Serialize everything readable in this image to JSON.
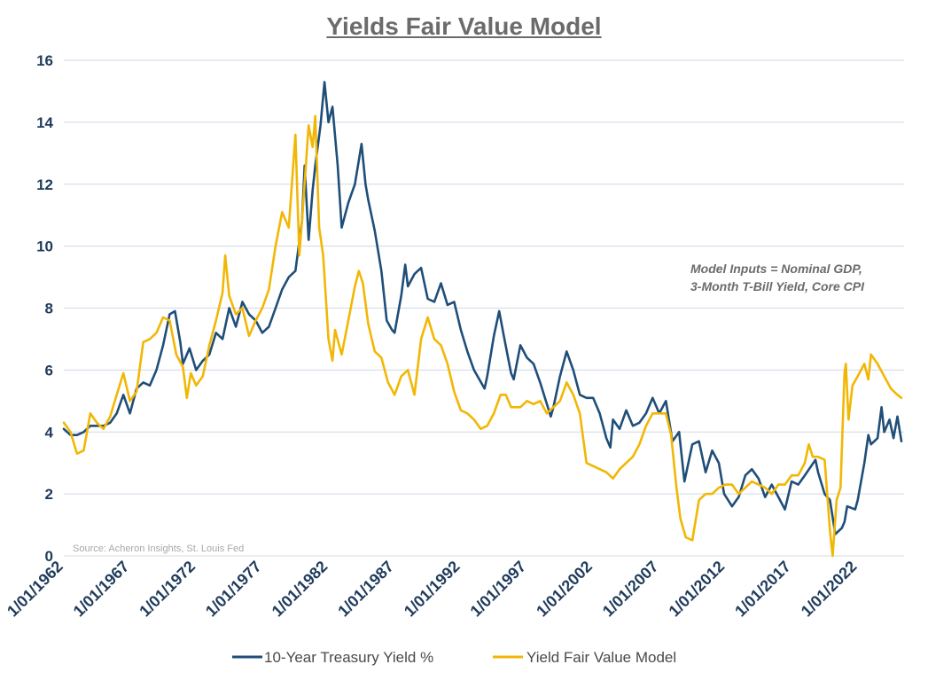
{
  "chart_data": {
    "type": "line",
    "title": "Yields Fair Value Model",
    "annotation_lines": [
      "Model Inputs = Nominal GDP,",
      "3-Month T-Bill Yield, Core CPI"
    ],
    "source": "Source: Acheron Insights, St. Louis Fed",
    "ylim": [
      0,
      16
    ],
    "yticks": [
      0,
      2,
      4,
      6,
      8,
      10,
      12,
      14,
      16
    ],
    "xlim": [
      1962,
      2025.5
    ],
    "xticks": [
      {
        "year": 1962,
        "label": "1/01/1962"
      },
      {
        "year": 1967,
        "label": "1/01/1967"
      },
      {
        "year": 1972,
        "label": "1/01/1972"
      },
      {
        "year": 1977,
        "label": "1/01/1977"
      },
      {
        "year": 1982,
        "label": "1/01/1982"
      },
      {
        "year": 1987,
        "label": "1/01/1987"
      },
      {
        "year": 1992,
        "label": "1/01/1992"
      },
      {
        "year": 1997,
        "label": "1/01/1997"
      },
      {
        "year": 2002,
        "label": "1/01/2002"
      },
      {
        "year": 2007,
        "label": "1/01/2007"
      },
      {
        "year": 2012,
        "label": "1/01/2012"
      },
      {
        "year": 2017,
        "label": "1/01/2017"
      },
      {
        "year": 2022,
        "label": "1/01/2022"
      }
    ],
    "grid": true,
    "legend_position": "bottom",
    "series": [
      {
        "name": "10-Year Treasury Yield %",
        "color": "#1f4e79",
        "points": [
          [
            1962.0,
            4.1
          ],
          [
            1962.5,
            3.9
          ],
          [
            1963.0,
            3.9
          ],
          [
            1963.5,
            4.0
          ],
          [
            1964.0,
            4.2
          ],
          [
            1964.5,
            4.2
          ],
          [
            1965.0,
            4.2
          ],
          [
            1965.5,
            4.3
          ],
          [
            1966.0,
            4.6
          ],
          [
            1966.5,
            5.2
          ],
          [
            1967.0,
            4.6
          ],
          [
            1967.5,
            5.4
          ],
          [
            1968.0,
            5.6
          ],
          [
            1968.5,
            5.5
          ],
          [
            1969.0,
            6.0
          ],
          [
            1969.5,
            6.8
          ],
          [
            1970.0,
            7.8
          ],
          [
            1970.4,
            7.9
          ],
          [
            1970.8,
            6.9
          ],
          [
            1971.0,
            6.2
          ],
          [
            1971.5,
            6.7
          ],
          [
            1972.0,
            6.0
          ],
          [
            1972.5,
            6.3
          ],
          [
            1973.0,
            6.5
          ],
          [
            1973.5,
            7.2
          ],
          [
            1974.0,
            7.0
          ],
          [
            1974.5,
            8.0
          ],
          [
            1975.0,
            7.4
          ],
          [
            1975.5,
            8.2
          ],
          [
            1976.0,
            7.8
          ],
          [
            1976.5,
            7.6
          ],
          [
            1977.0,
            7.2
          ],
          [
            1977.5,
            7.4
          ],
          [
            1978.0,
            8.0
          ],
          [
            1978.5,
            8.6
          ],
          [
            1979.0,
            9.0
          ],
          [
            1979.5,
            9.2
          ],
          [
            1980.0,
            10.8
          ],
          [
            1980.2,
            12.6
          ],
          [
            1980.5,
            10.2
          ],
          [
            1980.8,
            11.8
          ],
          [
            1981.0,
            12.6
          ],
          [
            1981.4,
            13.9
          ],
          [
            1981.7,
            15.3
          ],
          [
            1982.0,
            14.0
          ],
          [
            1982.3,
            14.5
          ],
          [
            1982.7,
            12.6
          ],
          [
            1983.0,
            10.6
          ],
          [
            1983.5,
            11.4
          ],
          [
            1984.0,
            12.0
          ],
          [
            1984.5,
            13.3
          ],
          [
            1984.8,
            12.0
          ],
          [
            1985.0,
            11.5
          ],
          [
            1985.5,
            10.5
          ],
          [
            1986.0,
            9.2
          ],
          [
            1986.4,
            7.6
          ],
          [
            1986.8,
            7.3
          ],
          [
            1987.0,
            7.2
          ],
          [
            1987.5,
            8.4
          ],
          [
            1987.8,
            9.4
          ],
          [
            1988.0,
            8.7
          ],
          [
            1988.5,
            9.1
          ],
          [
            1989.0,
            9.3
          ],
          [
            1989.5,
            8.3
          ],
          [
            1990.0,
            8.2
          ],
          [
            1990.5,
            8.8
          ],
          [
            1991.0,
            8.1
          ],
          [
            1991.5,
            8.2
          ],
          [
            1992.0,
            7.3
          ],
          [
            1992.5,
            6.6
          ],
          [
            1993.0,
            6.0
          ],
          [
            1993.8,
            5.4
          ],
          [
            1994.0,
            5.8
          ],
          [
            1994.5,
            7.1
          ],
          [
            1994.9,
            7.9
          ],
          [
            1995.3,
            7.0
          ],
          [
            1995.8,
            5.9
          ],
          [
            1996.0,
            5.7
          ],
          [
            1996.5,
            6.8
          ],
          [
            1997.0,
            6.4
          ],
          [
            1997.5,
            6.2
          ],
          [
            1998.0,
            5.6
          ],
          [
            1998.8,
            4.5
          ],
          [
            1999.0,
            4.8
          ],
          [
            1999.5,
            5.8
          ],
          [
            2000.0,
            6.6
          ],
          [
            2000.5,
            6.0
          ],
          [
            2001.0,
            5.2
          ],
          [
            2001.5,
            5.1
          ],
          [
            2002.0,
            5.1
          ],
          [
            2002.5,
            4.6
          ],
          [
            2003.0,
            3.8
          ],
          [
            2003.3,
            3.5
          ],
          [
            2003.5,
            4.4
          ],
          [
            2004.0,
            4.1
          ],
          [
            2004.5,
            4.7
          ],
          [
            2005.0,
            4.2
          ],
          [
            2005.5,
            4.3
          ],
          [
            2006.0,
            4.6
          ],
          [
            2006.5,
            5.1
          ],
          [
            2007.0,
            4.6
          ],
          [
            2007.5,
            5.0
          ],
          [
            2008.0,
            3.7
          ],
          [
            2008.5,
            4.0
          ],
          [
            2008.9,
            2.4
          ],
          [
            2009.5,
            3.6
          ],
          [
            2010.0,
            3.7
          ],
          [
            2010.5,
            2.7
          ],
          [
            2011.0,
            3.4
          ],
          [
            2011.5,
            3.0
          ],
          [
            2011.9,
            2.0
          ],
          [
            2012.5,
            1.6
          ],
          [
            2013.0,
            1.9
          ],
          [
            2013.5,
            2.6
          ],
          [
            2014.0,
            2.8
          ],
          [
            2014.5,
            2.5
          ],
          [
            2015.0,
            1.9
          ],
          [
            2015.5,
            2.3
          ],
          [
            2016.0,
            1.9
          ],
          [
            2016.5,
            1.5
          ],
          [
            2017.0,
            2.4
          ],
          [
            2017.5,
            2.3
          ],
          [
            2018.0,
            2.6
          ],
          [
            2018.8,
            3.1
          ],
          [
            2019.0,
            2.7
          ],
          [
            2019.5,
            2.0
          ],
          [
            2019.9,
            1.8
          ],
          [
            2020.3,
            0.7
          ],
          [
            2020.8,
            0.9
          ],
          [
            2021.0,
            1.1
          ],
          [
            2021.2,
            1.6
          ],
          [
            2021.8,
            1.5
          ],
          [
            2022.0,
            1.8
          ],
          [
            2022.5,
            3.0
          ],
          [
            2022.8,
            3.9
          ],
          [
            2023.0,
            3.6
          ],
          [
            2023.5,
            3.8
          ],
          [
            2023.8,
            4.8
          ],
          [
            2024.0,
            4.0
          ],
          [
            2024.4,
            4.4
          ],
          [
            2024.7,
            3.8
          ],
          [
            2025.0,
            4.5
          ],
          [
            2025.3,
            3.7
          ]
        ]
      },
      {
        "name": "Yield Fair Value Model",
        "color": "#f2b705",
        "points": [
          [
            1962.0,
            4.3
          ],
          [
            1962.5,
            4.0
          ],
          [
            1963.0,
            3.3
          ],
          [
            1963.5,
            3.4
          ],
          [
            1964.0,
            4.6
          ],
          [
            1964.5,
            4.3
          ],
          [
            1965.0,
            4.1
          ],
          [
            1965.5,
            4.5
          ],
          [
            1966.0,
            5.2
          ],
          [
            1966.5,
            5.9
          ],
          [
            1967.0,
            5.0
          ],
          [
            1967.5,
            5.3
          ],
          [
            1968.0,
            6.9
          ],
          [
            1968.5,
            7.0
          ],
          [
            1969.0,
            7.2
          ],
          [
            1969.5,
            7.7
          ],
          [
            1970.0,
            7.6
          ],
          [
            1970.5,
            6.5
          ],
          [
            1971.0,
            6.1
          ],
          [
            1971.3,
            5.1
          ],
          [
            1971.6,
            5.9
          ],
          [
            1972.0,
            5.5
          ],
          [
            1972.5,
            5.8
          ],
          [
            1973.0,
            6.8
          ],
          [
            1973.5,
            7.6
          ],
          [
            1974.0,
            8.5
          ],
          [
            1974.2,
            9.7
          ],
          [
            1974.5,
            8.4
          ],
          [
            1975.0,
            7.8
          ],
          [
            1975.5,
            8.0
          ],
          [
            1976.0,
            7.1
          ],
          [
            1976.5,
            7.6
          ],
          [
            1977.0,
            8.0
          ],
          [
            1977.5,
            8.6
          ],
          [
            1978.0,
            10.0
          ],
          [
            1978.5,
            11.1
          ],
          [
            1979.0,
            10.6
          ],
          [
            1979.5,
            13.6
          ],
          [
            1979.8,
            9.7
          ],
          [
            1980.0,
            10.8
          ],
          [
            1980.5,
            13.9
          ],
          [
            1980.8,
            13.2
          ],
          [
            1981.0,
            14.2
          ],
          [
            1981.3,
            10.6
          ],
          [
            1981.6,
            9.7
          ],
          [
            1982.0,
            7.0
          ],
          [
            1982.3,
            6.3
          ],
          [
            1982.5,
            7.3
          ],
          [
            1983.0,
            6.5
          ],
          [
            1983.5,
            7.6
          ],
          [
            1984.0,
            8.7
          ],
          [
            1984.3,
            9.2
          ],
          [
            1984.6,
            8.8
          ],
          [
            1985.0,
            7.5
          ],
          [
            1985.5,
            6.6
          ],
          [
            1986.0,
            6.4
          ],
          [
            1986.5,
            5.6
          ],
          [
            1987.0,
            5.2
          ],
          [
            1987.5,
            5.8
          ],
          [
            1988.0,
            6.0
          ],
          [
            1988.5,
            5.2
          ],
          [
            1989.0,
            7.0
          ],
          [
            1989.5,
            7.7
          ],
          [
            1990.0,
            7.0
          ],
          [
            1990.5,
            6.8
          ],
          [
            1991.0,
            6.2
          ],
          [
            1991.5,
            5.3
          ],
          [
            1992.0,
            4.7
          ],
          [
            1992.5,
            4.6
          ],
          [
            1993.0,
            4.4
          ],
          [
            1993.5,
            4.1
          ],
          [
            1994.0,
            4.2
          ],
          [
            1994.5,
            4.6
          ],
          [
            1995.0,
            5.2
          ],
          [
            1995.4,
            5.2
          ],
          [
            1995.8,
            4.8
          ],
          [
            1996.5,
            4.8
          ],
          [
            1997.0,
            5.0
          ],
          [
            1997.5,
            4.9
          ],
          [
            1998.0,
            5.0
          ],
          [
            1998.5,
            4.6
          ],
          [
            1999.0,
            4.8
          ],
          [
            1999.5,
            5.0
          ],
          [
            2000.0,
            5.6
          ],
          [
            2000.5,
            5.2
          ],
          [
            2001.0,
            4.6
          ],
          [
            2001.5,
            3.0
          ],
          [
            2002.0,
            2.9
          ],
          [
            2002.5,
            2.8
          ],
          [
            2003.0,
            2.7
          ],
          [
            2003.5,
            2.5
          ],
          [
            2004.0,
            2.8
          ],
          [
            2004.5,
            3.0
          ],
          [
            2005.0,
            3.2
          ],
          [
            2005.5,
            3.6
          ],
          [
            2006.0,
            4.2
          ],
          [
            2006.5,
            4.6
          ],
          [
            2007.0,
            4.6
          ],
          [
            2007.5,
            4.6
          ],
          [
            2007.9,
            3.9
          ],
          [
            2008.3,
            2.2
          ],
          [
            2008.6,
            1.2
          ],
          [
            2009.0,
            0.6
          ],
          [
            2009.5,
            0.5
          ],
          [
            2010.0,
            1.8
          ],
          [
            2010.5,
            2.0
          ],
          [
            2011.0,
            2.0
          ],
          [
            2011.5,
            2.2
          ],
          [
            2012.0,
            2.3
          ],
          [
            2012.5,
            2.3
          ],
          [
            2013.0,
            2.0
          ],
          [
            2013.5,
            2.2
          ],
          [
            2014.0,
            2.4
          ],
          [
            2014.5,
            2.3
          ],
          [
            2015.0,
            2.2
          ],
          [
            2015.5,
            2.0
          ],
          [
            2016.0,
            2.3
          ],
          [
            2016.5,
            2.3
          ],
          [
            2017.0,
            2.6
          ],
          [
            2017.5,
            2.6
          ],
          [
            2018.0,
            3.0
          ],
          [
            2018.3,
            3.6
          ],
          [
            2018.6,
            3.2
          ],
          [
            2019.0,
            3.2
          ],
          [
            2019.5,
            3.1
          ],
          [
            2019.9,
            0.8
          ],
          [
            2020.1,
            0.0
          ],
          [
            2020.4,
            1.8
          ],
          [
            2020.7,
            2.2
          ],
          [
            2021.0,
            5.9
          ],
          [
            2021.1,
            6.2
          ],
          [
            2021.3,
            4.4
          ],
          [
            2021.6,
            5.5
          ],
          [
            2022.0,
            5.8
          ],
          [
            2022.5,
            6.2
          ],
          [
            2022.8,
            5.7
          ],
          [
            2023.0,
            6.5
          ],
          [
            2023.5,
            6.2
          ],
          [
            2024.0,
            5.8
          ],
          [
            2024.5,
            5.4
          ],
          [
            2025.0,
            5.2
          ],
          [
            2025.3,
            5.1
          ]
        ]
      }
    ]
  }
}
